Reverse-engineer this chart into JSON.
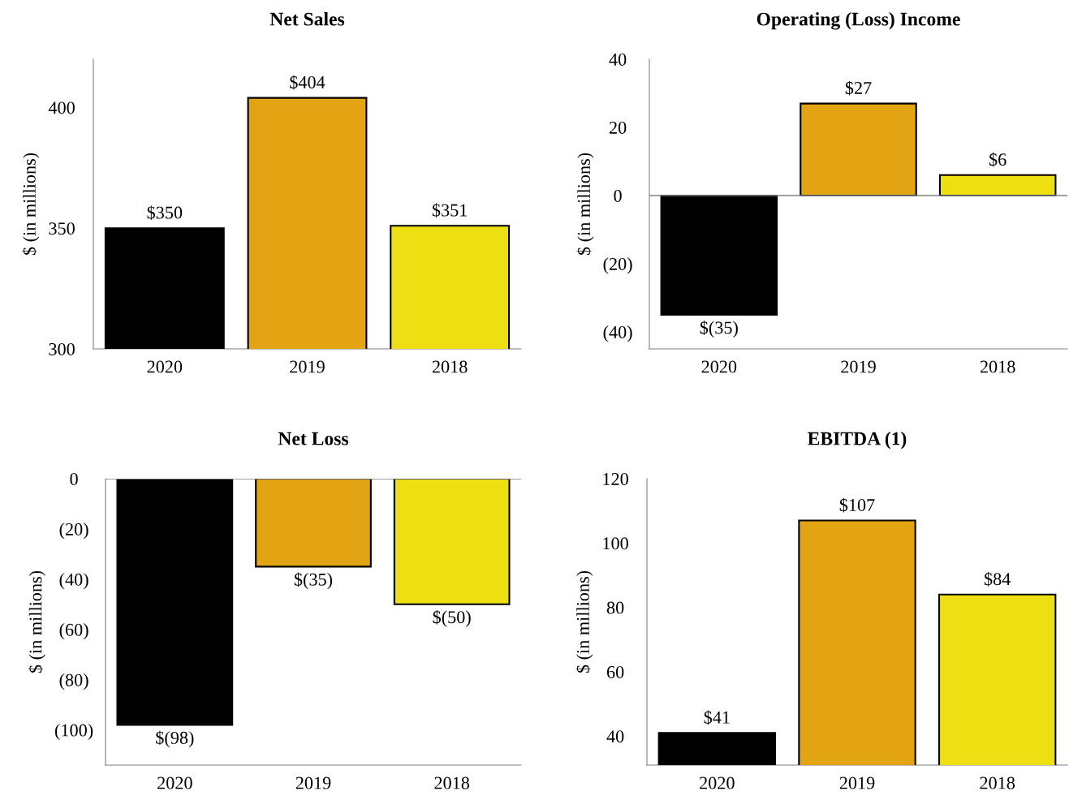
{
  "chart_data": [
    {
      "type": "bar",
      "title": "Net Sales",
      "ylabel": "$ (in millions)",
      "categories": [
        "2020",
        "2019",
        "2018"
      ],
      "values": [
        350,
        404,
        351
      ],
      "colors": [
        "#000000",
        "#e2a412",
        "#eedf12"
      ],
      "value_labels": [
        "$350",
        "$404",
        "$351"
      ],
      "ylim": [
        300,
        420
      ],
      "yticks": [
        300,
        350,
        400
      ],
      "grid": false
    },
    {
      "type": "bar",
      "title": "Operating (Loss) Income",
      "ylabel": "$ (in millions)",
      "categories": [
        "2020",
        "2019",
        "2018"
      ],
      "values": [
        -35,
        27,
        6
      ],
      "colors": [
        "#000000",
        "#e2a412",
        "#eedf12"
      ],
      "value_labels": [
        "$(35)",
        "$27",
        "$6"
      ],
      "ylim": [
        -45,
        40
      ],
      "yticks": [
        {
          "value": -40,
          "label": "(40)"
        },
        {
          "value": -20,
          "label": "(20)"
        },
        0,
        20,
        40
      ],
      "ref_lines": [
        {
          "axis": "y",
          "value": 0,
          "color": "#808080"
        }
      ],
      "grid": false
    },
    {
      "type": "bar",
      "title": "Net Loss",
      "ylabel": "$ (in millions)",
      "categories": [
        "2020",
        "2019",
        "2018"
      ],
      "values": [
        -98,
        -35,
        -50
      ],
      "colors": [
        "#000000",
        "#e2a412",
        "#eedf12"
      ],
      "value_labels": [
        "$(98)",
        "$(35)",
        "$(50)"
      ],
      "ylim": [
        -114,
        0
      ],
      "yticks": [
        {
          "value": -100,
          "label": "(100)"
        },
        {
          "value": -80,
          "label": "(80)"
        },
        {
          "value": -60,
          "label": "(60)"
        },
        {
          "value": -40,
          "label": "(40)"
        },
        {
          "value": -20,
          "label": "(20)"
        },
        0
      ],
      "ref_lines": [
        {
          "axis": "y",
          "value": 0,
          "color": "#808080"
        }
      ],
      "grid": false
    },
    {
      "type": "bar",
      "title": "EBITDA (1)",
      "ylabel": "$ (in millions)",
      "categories": [
        "2020",
        "2019",
        "2018"
      ],
      "values": [
        41,
        107,
        84
      ],
      "colors": [
        "#000000",
        "#e2a412",
        "#eedf12"
      ],
      "value_labels": [
        "$41",
        "$107",
        "$84"
      ],
      "ylim": [
        31,
        120
      ],
      "yticks": [
        40,
        60,
        80,
        100,
        120
      ],
      "grid": false
    }
  ]
}
